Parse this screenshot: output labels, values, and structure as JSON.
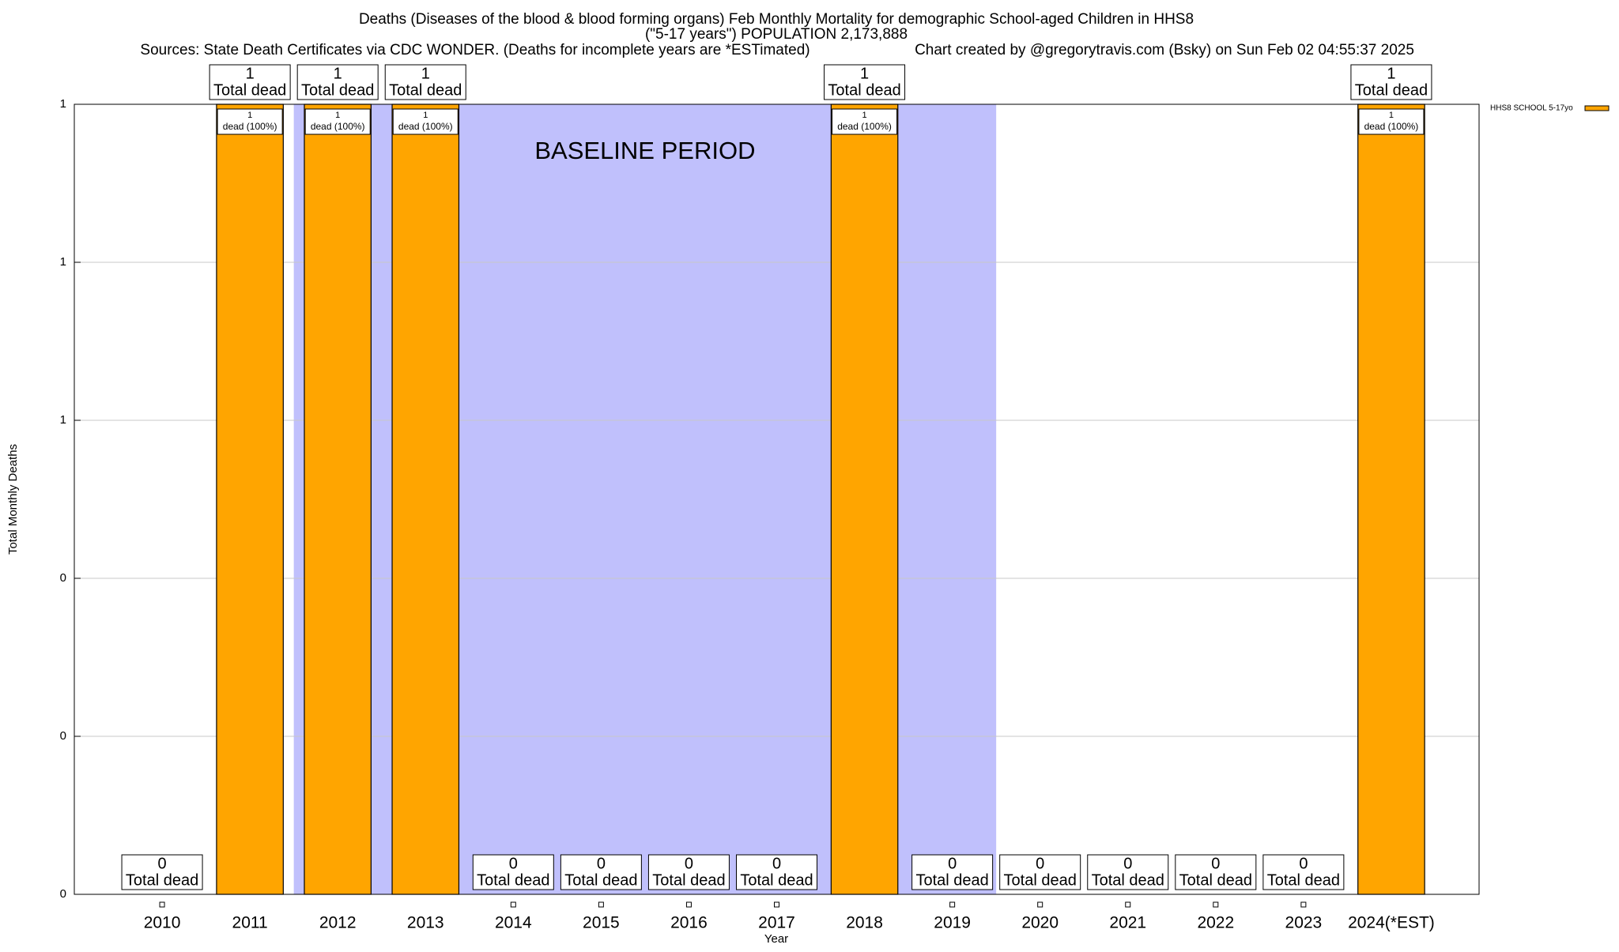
{
  "chart_data": {
    "type": "bar",
    "title": "Deaths (Diseases of the blood & blood forming organs) Feb Monthly Mortality for demographic School-aged Children in HHS8",
    "subtitle": "(\"5-17 years\") POPULATION 2,173,888",
    "sources": "Sources: State Death Certificates via CDC WONDER. (Deaths for incomplete years are *ESTimated)",
    "credit": "Chart created by @gregorytravis.com (Bsky) on Sun Feb 02 04:55:37 2025",
    "x_label": "Year",
    "y_label": "Total Monthly Deaths",
    "categories": [
      "2010",
      "2011",
      "2012",
      "2013",
      "2014",
      "2015",
      "2016",
      "2017",
      "2018",
      "2019",
      "2020",
      "2021",
      "2022",
      "2023",
      "2024(*EST)"
    ],
    "series": [
      {
        "name": "HHS8 SCHOOL 5-17yo",
        "color": "#ffa500",
        "values": [
          0,
          1,
          1,
          1,
          0,
          0,
          0,
          0,
          1,
          0,
          0,
          0,
          0,
          0,
          1
        ],
        "share_labels": [
          null,
          "dead (100%)",
          "dead (100%)",
          "dead (100%)",
          null,
          null,
          null,
          null,
          "dead (100%)",
          null,
          null,
          null,
          null,
          null,
          "dead (100%)"
        ]
      }
    ],
    "value_caption": "Total dead",
    "baseline_period": {
      "label": "BASELINE PERIOD",
      "from": "2011",
      "to": "2019",
      "color": "#c0c0fc"
    },
    "ylim": [
      0,
      1
    ],
    "yticks": [
      0,
      {
        "value": 0.2,
        "label": "0"
      },
      {
        "value": 0.4,
        "label": "0"
      },
      {
        "value": 0.6,
        "label": "1"
      },
      {
        "value": 0.8,
        "label": "1"
      },
      1
    ],
    "grid": true,
    "legend": "top-right"
  }
}
